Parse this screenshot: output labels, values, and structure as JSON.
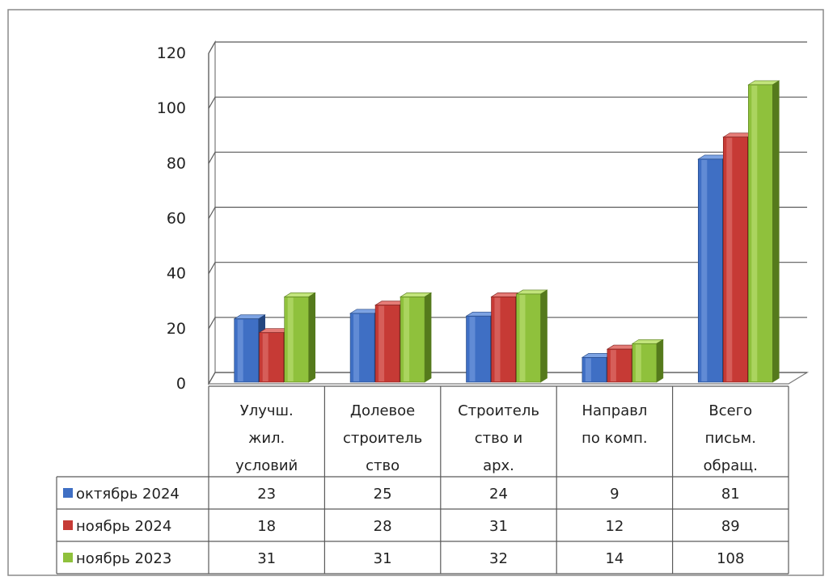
{
  "chart_data": {
    "type": "bar",
    "title": "",
    "xlabel": "",
    "ylabel": "",
    "ylim": [
      0,
      120
    ],
    "yticks": [
      "0",
      "20",
      "40",
      "60",
      "80",
      "100",
      "120"
    ],
    "grid": true,
    "three_d": true,
    "categories": [
      [
        "Улучш.",
        "жил.",
        "условий"
      ],
      [
        "Долевое",
        "строитель",
        "ство"
      ],
      [
        "Строитель",
        "ство и",
        "арх."
      ],
      [
        "Направл",
        "по комп."
      ],
      [
        "Всего",
        "письм.",
        "обращ."
      ]
    ],
    "series": [
      {
        "name": "октябрь 2024",
        "values": [
          23,
          25,
          24,
          9,
          81
        ],
        "color": "#3f6fc4",
        "color_dark": "#24467f",
        "color_light": "#7da3e3"
      },
      {
        "name": "ноябрь 2024",
        "values": [
          18,
          28,
          31,
          12,
          89
        ],
        "color": "#c63a35",
        "color_dark": "#7e1f1c",
        "color_light": "#e47b76"
      },
      {
        "name": "ноябрь 2023",
        "values": [
          31,
          31,
          32,
          14,
          108
        ],
        "color": "#8fc13c",
        "color_dark": "#557a1c",
        "color_light": "#c2e47c"
      }
    ],
    "legend": "data-table",
    "table": {
      "rows": [
        {
          "label": "октябрь 2024",
          "cells": [
            "23",
            "25",
            "24",
            "9",
            "81"
          ]
        },
        {
          "label": "ноябрь 2024",
          "cells": [
            "18",
            "28",
            "31",
            "12",
            "89"
          ]
        },
        {
          "label": "ноябрь 2023",
          "cells": [
            "31",
            "31",
            "32",
            "14",
            "108"
          ]
        }
      ]
    }
  }
}
